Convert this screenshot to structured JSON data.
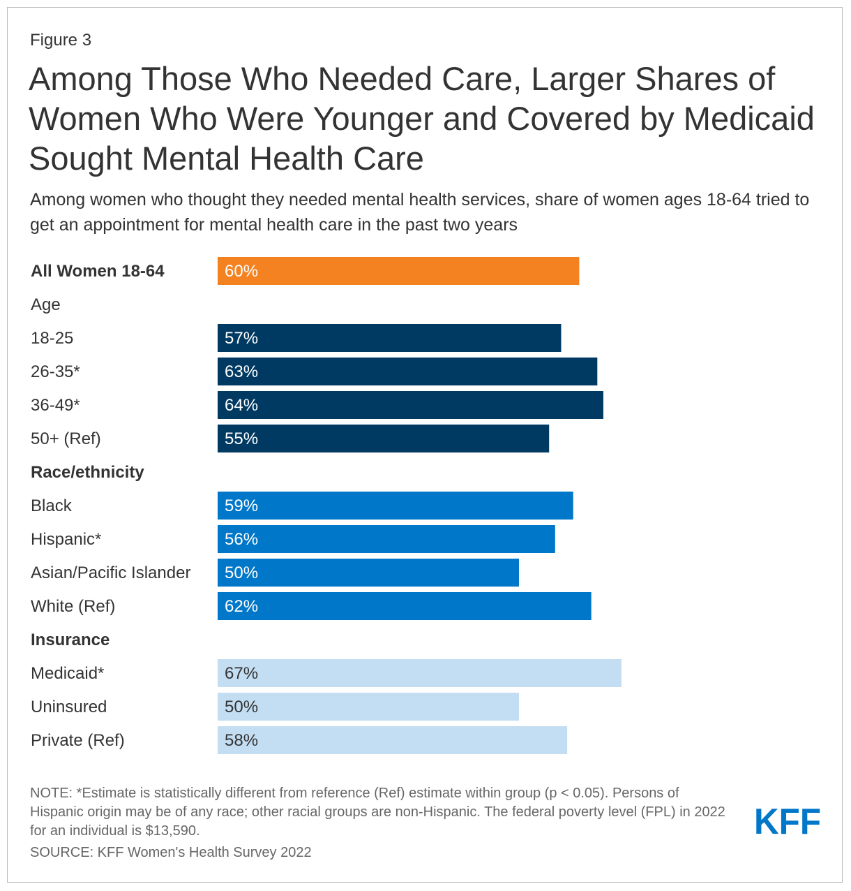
{
  "figure_label": "Figure 3",
  "title": "Among Those Who Needed Care, Larger Shares of Women Who Were Younger and Covered by Medicaid Sought Mental Health Care",
  "subtitle": "Among women who thought they needed mental health services, share of women ages 18-64 tried to get an appointment for mental health care in the past two years",
  "note": "NOTE: *Estimate is statistically different from reference (Ref) estimate within group (p < 0.05). Persons of Hispanic origin may be of any race; other racial groups are non-Hispanic. The federal poverty level (FPL) in 2022 for an individual is $13,590.",
  "source": "SOURCE: KFF Women's Health Survey 2022",
  "logo_text": "KFF",
  "colors": {
    "total": "#f58220",
    "age": "#003a63",
    "race": "#0077c8",
    "insurance": "#c3def2",
    "label_dark_text": "#333333",
    "label_light_text": "#ffffff",
    "brand": "#0077c8"
  },
  "chart_data": {
    "type": "bar",
    "orientation": "horizontal",
    "title": "Among Those Who Needed Care, Larger Shares of Women Who Were Younger and Covered by Medicaid Sought Mental Health Care",
    "xlabel": "",
    "ylabel": "",
    "xlim": [
      0,
      100
    ],
    "grid": false,
    "value_suffix": "%",
    "rows": [
      {
        "label": "All Women 18-64",
        "value": 60,
        "group": "total",
        "bold": true
      },
      {
        "label": "Age",
        "value": null,
        "group": "header",
        "bold": false
      },
      {
        "label": "18-25",
        "value": 57,
        "group": "age",
        "bold": false
      },
      {
        "label": "26-35*",
        "value": 63,
        "group": "age",
        "bold": false
      },
      {
        "label": "36-49*",
        "value": 64,
        "group": "age",
        "bold": false
      },
      {
        "label": "50+ (Ref)",
        "value": 55,
        "group": "age",
        "bold": false
      },
      {
        "label": "Race/ethnicity",
        "value": null,
        "group": "header",
        "bold": true
      },
      {
        "label": "Black",
        "value": 59,
        "group": "race",
        "bold": false
      },
      {
        "label": "Hispanic*",
        "value": 56,
        "group": "race",
        "bold": false
      },
      {
        "label": "Asian/Pacific Islander",
        "value": 50,
        "group": "race",
        "bold": false
      },
      {
        "label": "White (Ref)",
        "value": 62,
        "group": "race",
        "bold": false
      },
      {
        "label": "Insurance",
        "value": null,
        "group": "header",
        "bold": true
      },
      {
        "label": "Medicaid*",
        "value": 67,
        "group": "insurance",
        "bold": false
      },
      {
        "label": "Uninsured",
        "value": 50,
        "group": "insurance",
        "bold": false
      },
      {
        "label": "Private (Ref)",
        "value": 58,
        "group": "insurance",
        "bold": false
      }
    ]
  }
}
